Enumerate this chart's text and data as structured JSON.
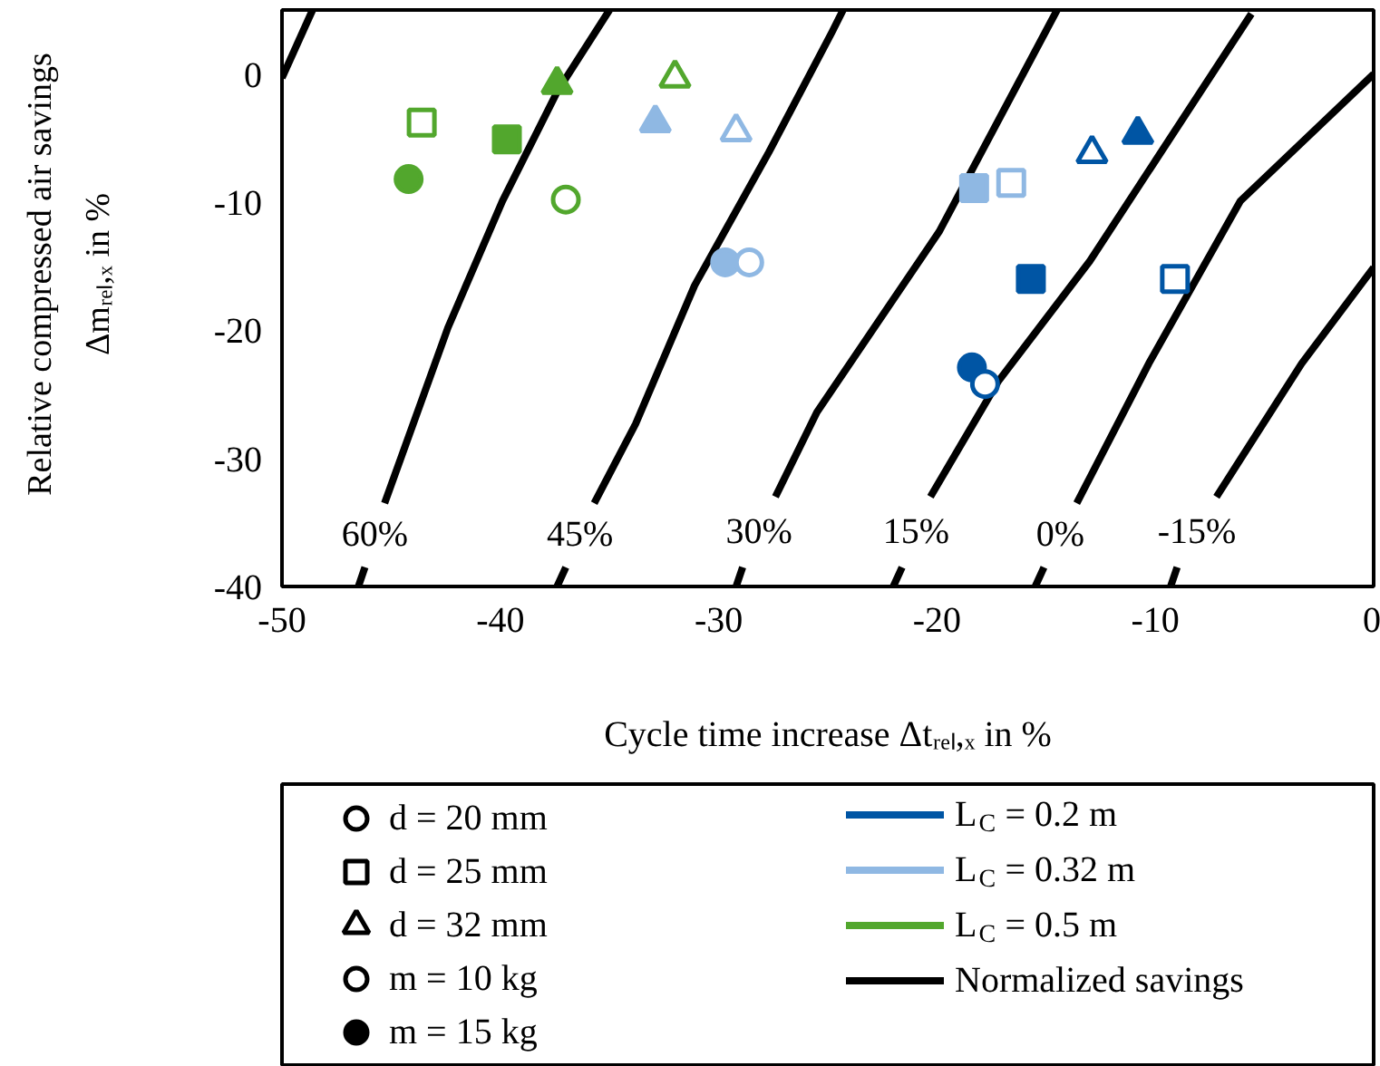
{
  "chart_data": {
    "type": "scatter",
    "xlabel": "Cycle time increase Δtᵣₑₗ,ₓ in %",
    "ylabel": "Relative compressed air savings\nΔmᵣₑₗ,ₓ in %",
    "xlim": [
      -50,
      0
    ],
    "ylim": [
      -40,
      5
    ],
    "xticks": [
      -50,
      -40,
      -30,
      -20,
      -10,
      0
    ],
    "yticks": [
      -40,
      -30,
      -20,
      -10,
      0
    ],
    "grid": false,
    "legend": "bottom",
    "series": [
      {
        "type": "line",
        "name": "L$_{C}$ = 0.2 m",
        "color": "#0055a4"
      },
      {
        "type": "line",
        "name": "L$_{C}$ = 0.32 m",
        "color": "#8fb8e3"
      },
      {
        "type": "line",
        "name": "L$_{C}$ = 0.5 m",
        "color": "#52a72d"
      },
      {
        "type": "line",
        "color": "#000000",
        "x": [
          -50,
          -48.6
        ],
        "values": [
          -0.3,
          5.0
        ]
      },
      {
        "type": "line",
        "name": "Normalized savings",
        "color": "#000000",
        "x": [
          -35.0,
          -37.4,
          -39.9,
          -42.4,
          -45.3,
          null,
          -46.2,
          -46.5
        ],
        "values": [
          5.0,
          -1.4,
          -9.9,
          -19.8,
          -33.5,
          null,
          -38.5,
          -40
        ]
      },
      {
        "type": "line",
        "color": "#000000",
        "x": [
          -24.3,
          -24.8,
          -27.7,
          -31.1,
          -33.8,
          -35.7,
          null,
          -37.0,
          -37.4
        ],
        "values": [
          5.0,
          3.3,
          -6.1,
          -16.5,
          -27.3,
          -33.5,
          null,
          -38.5,
          -40
        ]
      },
      {
        "type": "line",
        "color": "#000000",
        "x": [
          -14.5,
          -19.9,
          -25.5,
          -27.4,
          null,
          -28.9,
          -29.2
        ],
        "values": [
          5.0,
          -12.3,
          -26.4,
          -33.0,
          null,
          -38.5,
          -40
        ]
      },
      {
        "type": "line",
        "color": "#000000",
        "x": [
          -5.6,
          -13.0,
          -17.2,
          -20.3,
          null,
          -21.6,
          -22.0
        ],
        "values": [
          4.7,
          -14.6,
          -24.0,
          -33.0,
          null,
          -38.5,
          -40
        ]
      },
      {
        "type": "line",
        "color": "#000000",
        "x": [
          0,
          -6.1,
          -10.3,
          -13.6,
          null,
          -15.1,
          -15.5
        ],
        "values": [
          0,
          -9.9,
          -22.6,
          -33.5,
          null,
          -38.5,
          -40
        ]
      },
      {
        "type": "line",
        "color": "#000000",
        "x": [
          0,
          -3.3,
          -7.2,
          null,
          -9.0,
          -9.3
        ],
        "values": [
          -15.1,
          -22.6,
          -33.0,
          null,
          -38.5,
          -40
        ]
      },
      {
        "name": "d = 20 mm",
        "marker": "circle",
        "color": "#ffffff"
      },
      {
        "name": "d = 25 mm",
        "marker": "square",
        "color": "#ffffff"
      },
      {
        "name": "d = 32 mm",
        "marker": "triangle",
        "color": "#ffffff"
      },
      {
        "name": "m = 10 kg",
        "marker": "circle",
        "color": "#ffffff"
      },
      {
        "name": "m = 15 kg",
        "marker": "circle",
        "color": "#000000"
      },
      {
        "marker": "circle",
        "colors": [
          "#0055a4",
          "#8fb8e3",
          "#52a72d"
        ],
        "x": [
          -18.4,
          -29.7,
          -44.2
        ],
        "values": [
          -22.9,
          -14.7,
          -8.2
        ]
      },
      {
        "marker": "circle",
        "color": "#ffffff",
        "colors": [
          "#0055a4",
          "#8fb8e3",
          "#52a72d"
        ],
        "x": [
          -17.8,
          -28.6,
          -37.0
        ],
        "values": [
          -24.2,
          -14.7,
          -9.8
        ]
      },
      {
        "marker": "square",
        "colors": [
          "#0055a4",
          "#8fb8e3",
          "#52a72d"
        ],
        "x": [
          -15.7,
          -18.3,
          -39.7
        ],
        "values": [
          -16.0,
          -8.9,
          -5.1
        ]
      },
      {
        "marker": "square",
        "color": "#ffffff",
        "colors": [
          "#0055a4",
          "#8fb8e3",
          "#52a72d"
        ],
        "x": [
          -9.1,
          -16.6,
          -43.6
        ],
        "values": [
          -16.0,
          -8.5,
          -3.8
        ]
      },
      {
        "marker": "triangle",
        "colors": [
          "#0055a4",
          "#8fb8e3",
          "#52a72d"
        ],
        "x": [
          -10.8,
          -32.9,
          -37.4
        ],
        "values": [
          -4.7,
          -3.8,
          -0.8
        ]
      },
      {
        "marker": "triangle",
        "color": "#ffffff",
        "colors": [
          "#0055a4",
          "#8fb8e3",
          "#52a72d"
        ],
        "x": [
          -12.9,
          -29.2,
          -32.0
        ],
        "values": [
          -6.2,
          -4.5,
          -0.3
        ]
      }
    ],
    "annotations": [
      "60%",
      "45%",
      "30%",
      "15%",
      "0%",
      "-15%"
    ]
  }
}
